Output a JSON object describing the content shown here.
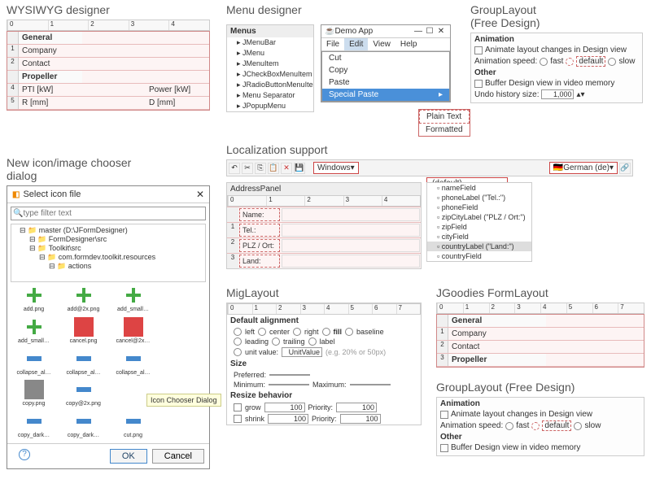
{
  "sections": {
    "wysiwyg": "WYSIWYG designer",
    "menu": "Menu designer",
    "group": "GroupLayout\n(Free Design)",
    "icon": "New icon/image chooser\ndialog",
    "loc": "Localization support",
    "mig": "MigLayout",
    "jg": "JGoodies FormLayout",
    "group2": "GroupLayout (Free Design)"
  },
  "wysiwyg": {
    "ruler_cols": [
      "0",
      "1",
      "2",
      "3",
      "4"
    ],
    "rows": [
      {
        "n": "",
        "label": "General",
        "cells": [
          "",
          ""
        ]
      },
      {
        "n": "1",
        "label": "Company",
        "cells": [
          "",
          ""
        ]
      },
      {
        "n": "2",
        "label": "Contact",
        "cells": [
          "",
          ""
        ]
      },
      {
        "n": "",
        "label": "Propeller",
        "cells": [
          "",
          ""
        ]
      },
      {
        "n": "4",
        "label": "PTI [kW]",
        "cells": [
          "",
          "Power [kW]"
        ]
      },
      {
        "n": "5",
        "label": "R [mm]",
        "cells": [
          "",
          "D [mm]"
        ]
      }
    ]
  },
  "menu": {
    "tree_title": "Menus",
    "tree": [
      "JMenuBar",
      "JMenu",
      "JMenuItem",
      "JCheckBoxMenuItem",
      "JRadioButtonMenuItem",
      "Menu Separator",
      "JPopupMenu"
    ],
    "demo_title": "Demo App",
    "menubar": [
      "File",
      "Edit",
      "View",
      "Help"
    ],
    "active": "Edit",
    "dropdown": [
      "Cut",
      "Copy",
      "Paste"
    ],
    "submenu_trigger": "Special Paste",
    "submenu": [
      "Plain Text",
      "Formatted"
    ]
  },
  "group": {
    "section1": "Animation",
    "animate": "Animate layout changes in Design view",
    "speed_label": "Animation speed:",
    "speeds": [
      "fast",
      "default",
      "slow"
    ],
    "section2": "Other",
    "buffer": "Buffer Design view in video memory",
    "undo_label": "Undo history size:",
    "undo_value": "1,000"
  },
  "icon": {
    "title": "Select icon file",
    "filter_placeholder": "type filter text",
    "tree": [
      {
        "l": "master  (D:\\JFormDesigner)",
        "cls": "l1"
      },
      {
        "l": "FormDesigner\\src",
        "cls": "l2"
      },
      {
        "l": "Toolkit\\src",
        "cls": "l2"
      },
      {
        "l": "com.formdev.toolkit.resources",
        "cls": "l3"
      },
      {
        "l": "actions",
        "cls": "l4"
      }
    ],
    "icons": [
      {
        "name": "add.png",
        "cls": "plus-g"
      },
      {
        "name": "add@2x.png",
        "cls": "plus-g"
      },
      {
        "name": "add_small…",
        "cls": "plus-g"
      },
      {
        "name": "",
        "cls": ""
      },
      {
        "name": "add_small…",
        "cls": "plus-g"
      },
      {
        "name": "cancel.png",
        "cls": "sq-r"
      },
      {
        "name": "cancel@2x…",
        "cls": "sq-r"
      },
      {
        "name": "",
        "cls": ""
      },
      {
        "name": "collapse_al…",
        "cls": "bar-b"
      },
      {
        "name": "collapse_al…",
        "cls": "bar-b"
      },
      {
        "name": "collapse_al…",
        "cls": "bar-b"
      },
      {
        "name": "",
        "cls": ""
      },
      {
        "name": "copy.png",
        "cls": "sel-icon"
      },
      {
        "name": "copy@2x.png",
        "cls": "bar-b"
      },
      {
        "name": "",
        "cls": ""
      },
      {
        "name": "",
        "cls": ""
      },
      {
        "name": "copy_dark…",
        "cls": "bar-b"
      },
      {
        "name": "copy_dark…",
        "cls": "bar-b"
      },
      {
        "name": "cut.png",
        "cls": "bar-b"
      }
    ],
    "tooltip": "Icon Chooser Dialog",
    "ok": "OK",
    "cancel": "Cancel"
  },
  "loc": {
    "toolbar_combo": "Windows",
    "lang_combo": "German (de)",
    "lang_options": [
      "(default)",
      "German (de)"
    ],
    "panel_title": "AddressPanel",
    "rows": [
      {
        "n": "",
        "lbl": "Name:"
      },
      {
        "n": "1",
        "lbl": "Tel.:"
      },
      {
        "n": "2",
        "lbl": "PLZ / Ort:"
      },
      {
        "n": "3",
        "lbl": "Land:"
      }
    ],
    "tree": [
      "nameField",
      "phoneLabel (\"Tel.:\")",
      "phoneField",
      "zipCityLabel (\"PLZ / Ort:\")",
      "zipField",
      "cityField",
      "countryLabel (\"Land:\")",
      "countryField"
    ]
  },
  "mig": {
    "section1": "Default alignment",
    "aligns": [
      "left",
      "center",
      "right",
      "fill",
      "baseline",
      "leading",
      "trailing",
      "label"
    ],
    "unit_label": "unit value:",
    "unit_hint": "(e.g. 20% or 50px)",
    "section2": "Size",
    "pref": "Preferred:",
    "min": "Minimum:",
    "max": "Maximum:",
    "section3": "Resize behavior",
    "grow": "grow",
    "shrink": "shrink",
    "priority": "Priority:",
    "val100": "100"
  },
  "jg": {
    "rows": [
      "General",
      "Company",
      "Contact",
      "Propeller"
    ]
  },
  "colors": {
    "accent": "#4a90d9",
    "border_red": "#c66",
    "bg_pink": "#fdf4f4"
  }
}
